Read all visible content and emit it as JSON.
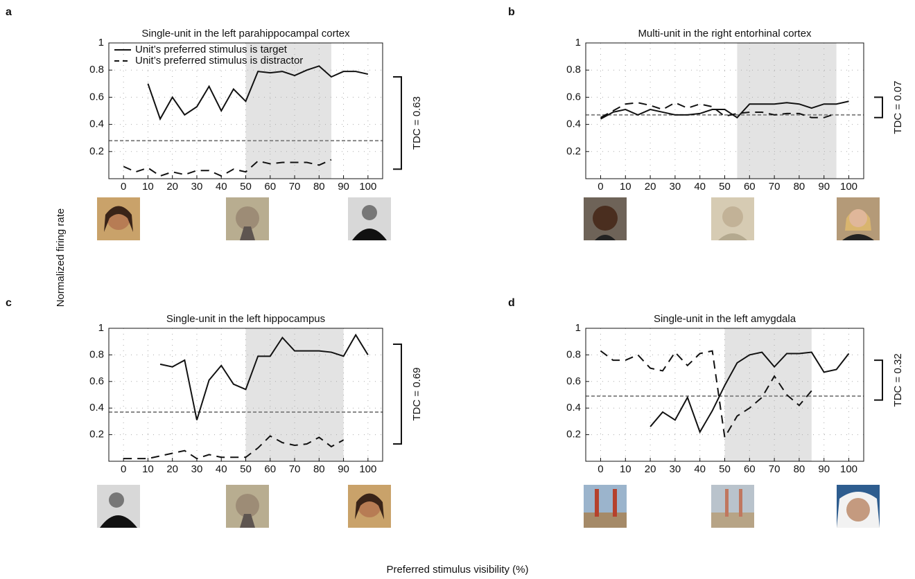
{
  "labels": {
    "y": "Normalized firing rate",
    "x": "Preferred stimulus visibility (%)"
  },
  "chart_data": [
    {
      "type": "line",
      "panel": "a",
      "title": "Single-unit in the left parahippocampal cortex",
      "x": [
        0,
        5,
        10,
        15,
        20,
        25,
        30,
        35,
        40,
        45,
        50,
        55,
        60,
        65,
        70,
        75,
        80,
        85,
        90,
        95,
        100
      ],
      "xlim": [
        -6,
        106
      ],
      "ylim": [
        0,
        1
      ],
      "xticks": [
        0,
        10,
        20,
        30,
        40,
        50,
        60,
        70,
        80,
        90,
        100
      ],
      "yticks": [
        0.2,
        0.4,
        0.6,
        0.8,
        1
      ],
      "grid": true,
      "shaded_range": [
        50,
        85
      ],
      "reference_line": {
        "value": 0.28,
        "color": "#888888"
      },
      "annotation": "TDC = 0.63",
      "tdc_range": [
        0.07,
        0.75
      ],
      "legend": "upper left",
      "series": [
        {
          "name": "Unit’s preferred stimulus is target",
          "color": "#111111",
          "dash": "solid",
          "values": [
            null,
            null,
            0.7,
            0.44,
            0.6,
            0.47,
            0.53,
            0.68,
            0.5,
            0.66,
            0.57,
            0.79,
            0.78,
            0.79,
            0.76,
            0.8,
            0.83,
            0.75,
            0.79,
            0.79,
            0.77
          ]
        },
        {
          "name": "Unit’s preferred stimulus is distractor",
          "color": "#111111",
          "dash": "dashed",
          "values": [
            0.09,
            0.05,
            0.08,
            0.02,
            0.05,
            0.03,
            0.06,
            0.06,
            0.02,
            0.07,
            0.05,
            0.13,
            0.11,
            0.12,
            0.12,
            0.12,
            0.1,
            0.14,
            null,
            null,
            null
          ]
        }
      ]
    },
    {
      "type": "line",
      "panel": "b",
      "title": "Multi-unit in the right entorhinal cortex",
      "x": [
        0,
        5,
        10,
        15,
        20,
        25,
        30,
        35,
        40,
        45,
        50,
        55,
        60,
        65,
        70,
        75,
        80,
        85,
        90,
        95,
        100
      ],
      "xlim": [
        -6,
        106
      ],
      "ylim": [
        0,
        1
      ],
      "xticks": [
        0,
        10,
        20,
        30,
        40,
        50,
        60,
        70,
        80,
        90,
        100
      ],
      "yticks": [
        0.2,
        0.4,
        0.6,
        0.8,
        1
      ],
      "grid": true,
      "shaded_range": [
        55,
        95
      ],
      "reference_line": {
        "value": 0.47,
        "color": "#888888"
      },
      "annotation": "TDC = 0.07",
      "tdc_range": [
        0.45,
        0.6
      ],
      "series": [
        {
          "color": "#111111",
          "dash": "solid",
          "values": [
            0.44,
            0.49,
            0.51,
            0.47,
            0.51,
            0.49,
            0.47,
            0.47,
            0.48,
            0.51,
            0.51,
            0.45,
            0.55,
            0.55,
            0.55,
            0.56,
            0.55,
            0.52,
            0.55,
            0.55,
            0.57
          ]
        },
        {
          "color": "#111111",
          "dash": "dashed",
          "values": [
            0.45,
            0.5,
            0.55,
            0.56,
            0.54,
            0.51,
            0.56,
            0.52,
            0.55,
            0.53,
            0.46,
            0.48,
            0.49,
            0.49,
            0.47,
            0.48,
            0.48,
            0.45,
            0.45,
            0.48,
            null
          ]
        }
      ]
    },
    {
      "type": "line",
      "panel": "c",
      "title": "Single-unit in the left hippocampus",
      "x": [
        0,
        5,
        10,
        15,
        20,
        25,
        30,
        35,
        40,
        45,
        50,
        55,
        60,
        65,
        70,
        75,
        80,
        85,
        90,
        95,
        100
      ],
      "xlim": [
        -6,
        106
      ],
      "ylim": [
        0,
        1
      ],
      "xticks": [
        0,
        10,
        20,
        30,
        40,
        50,
        60,
        70,
        80,
        90,
        100
      ],
      "yticks": [
        0.2,
        0.4,
        0.6,
        0.8,
        1
      ],
      "grid": true,
      "shaded_range": [
        50,
        90
      ],
      "reference_line": {
        "value": 0.37,
        "color": "#888888"
      },
      "annotation": "TDC = 0.69",
      "tdc_range": [
        0.13,
        0.88
      ],
      "series": [
        {
          "color": "#111111",
          "dash": "solid",
          "values": [
            null,
            null,
            null,
            0.73,
            0.71,
            0.76,
            0.31,
            0.61,
            0.72,
            0.58,
            0.54,
            0.79,
            0.79,
            0.93,
            0.83,
            0.83,
            0.83,
            0.82,
            0.79,
            0.95,
            0.8
          ]
        },
        {
          "color": "#111111",
          "dash": "dashed",
          "values": [
            0.02,
            0.02,
            0.02,
            0.04,
            0.06,
            0.08,
            0.02,
            0.05,
            0.03,
            0.03,
            0.03,
            0.1,
            0.19,
            0.14,
            0.12,
            0.13,
            0.18,
            0.11,
            0.16,
            null,
            null
          ]
        }
      ]
    },
    {
      "type": "line",
      "panel": "d",
      "title": "Single-unit in the left amygdala",
      "x": [
        0,
        5,
        10,
        15,
        20,
        25,
        30,
        35,
        40,
        45,
        50,
        55,
        60,
        65,
        70,
        75,
        80,
        85,
        90,
        95,
        100
      ],
      "xlim": [
        -6,
        106
      ],
      "ylim": [
        0,
        1
      ],
      "xticks": [
        0,
        10,
        20,
        30,
        40,
        50,
        60,
        70,
        80,
        90,
        100
      ],
      "yticks": [
        0.2,
        0.4,
        0.6,
        0.8,
        1
      ],
      "grid": true,
      "shaded_range": [
        50,
        85
      ],
      "reference_line": {
        "value": 0.49,
        "color": "#888888"
      },
      "annotation": "TDC = 0.32",
      "tdc_range": [
        0.46,
        0.76
      ],
      "series": [
        {
          "color": "#111111",
          "dash": "solid",
          "values": [
            null,
            null,
            null,
            null,
            0.26,
            0.37,
            0.31,
            0.48,
            0.22,
            0.38,
            0.57,
            0.74,
            0.8,
            0.82,
            0.71,
            0.81,
            0.81,
            0.82,
            0.67,
            0.69,
            0.81
          ]
        },
        {
          "color": "#111111",
          "dash": "dashed",
          "values": [
            0.83,
            0.76,
            0.76,
            0.8,
            0.7,
            0.68,
            0.82,
            0.72,
            0.81,
            0.83,
            0.18,
            0.34,
            0.4,
            0.48,
            0.64,
            0.5,
            0.42,
            0.53,
            null,
            null,
            null
          ]
        }
      ]
    }
  ]
}
